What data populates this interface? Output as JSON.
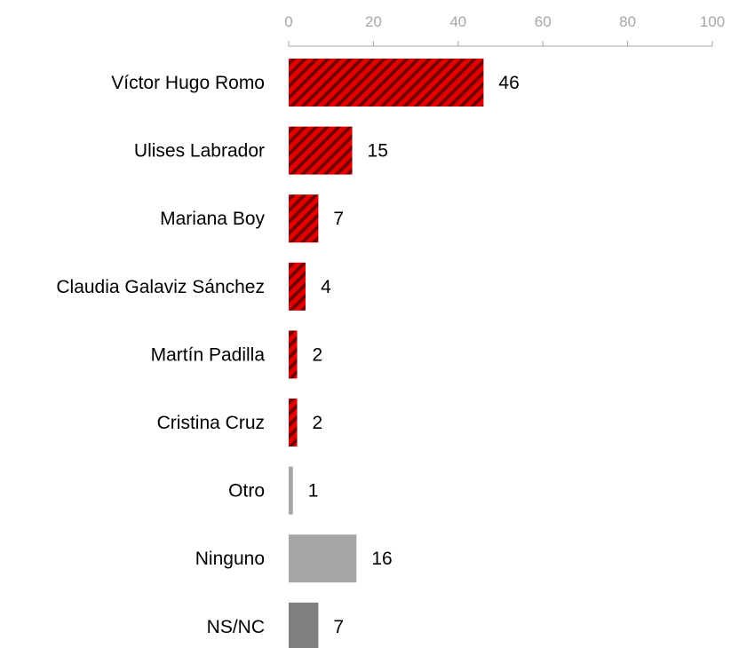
{
  "chart_data": {
    "type": "bar",
    "orientation": "horizontal",
    "title": "",
    "xlabel": "",
    "ylabel": "",
    "xlim": [
      0,
      100
    ],
    "x_ticks": [
      "0",
      "20",
      "40",
      "60",
      "80",
      "100"
    ],
    "axis_position": "top",
    "grid": false,
    "legend": "none",
    "categories": [
      "Víctor Hugo Romo",
      "Ulises Labrador",
      "Mariana Boy",
      "Claudia Galaviz Sánchez",
      "Martín Padilla",
      "Cristina Cruz",
      "Otro",
      "Ninguno",
      "NS/NC"
    ],
    "values": [
      46,
      15,
      7,
      4,
      2,
      2,
      1,
      16,
      7
    ],
    "value_labels": [
      "46",
      "15",
      "7",
      "4",
      "2",
      "2",
      "1",
      "16",
      "7"
    ],
    "bar_styles": [
      "hatched-red",
      "hatched-red",
      "hatched-red",
      "hatched-red",
      "hatched-red",
      "hatched-red",
      "light-gray",
      "light-gray",
      "dark-gray"
    ],
    "colors": {
      "hatch_base": "#e00000",
      "hatch_stripe": "#6e0000",
      "light_gray": "#a6a6a6",
      "dark_gray": "#7f7f7f",
      "axis": "#a6a6a6"
    }
  }
}
